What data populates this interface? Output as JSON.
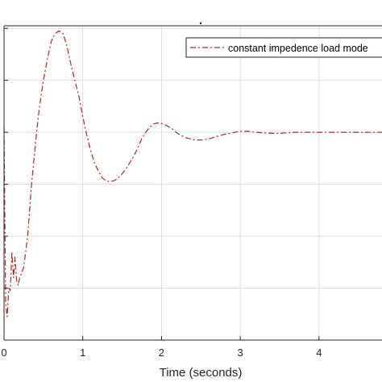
{
  "chart_data": {
    "type": "line",
    "title": ".",
    "xlabel": "Time (seconds)",
    "ylabel": "",
    "xlim": [
      0,
      4.8
    ],
    "ylim": [
      0,
      6.05
    ],
    "grid": true,
    "legend_position": "top-right",
    "x_ticks": [
      "0",
      "1",
      "2",
      "3",
      "4"
    ],
    "x_tick_values": [
      0,
      1,
      2,
      3,
      4
    ],
    "y_tick_values": [
      1,
      2,
      3,
      4,
      5,
      6
    ],
    "series": [
      {
        "name": "constant impedence load mode",
        "color": "#b52424",
        "style": "dash-dot",
        "x": [
          0,
          0.02,
          0.04,
          0.06,
          0.08,
          0.1,
          0.12,
          0.14,
          0.16,
          0.18,
          0.2,
          0.25,
          0.3,
          0.35,
          0.4,
          0.45,
          0.5,
          0.55,
          0.6,
          0.65,
          0.7,
          0.75,
          0.8,
          0.85,
          0.9,
          0.95,
          1.0,
          1.05,
          1.1,
          1.15,
          1.2,
          1.25,
          1.3,
          1.35,
          1.4,
          1.45,
          1.5,
          1.55,
          1.6,
          1.65,
          1.7,
          1.75,
          1.8,
          1.85,
          1.9,
          1.95,
          2.0,
          2.05,
          2.1,
          2.15,
          2.2,
          2.3,
          2.4,
          2.5,
          2.6,
          2.7,
          2.8,
          2.9,
          3.0,
          3.1,
          3.2,
          3.3,
          3.4,
          3.5,
          3.6,
          3.7,
          3.8,
          3.9,
          4.0,
          4.2,
          4.4,
          4.6,
          4.8
        ],
        "y": [
          4.1,
          0.7,
          0.45,
          1.0,
          0.95,
          1.7,
          1.2,
          1.6,
          1.15,
          1.05,
          1.2,
          1.4,
          2.0,
          3.0,
          3.8,
          4.5,
          5.0,
          5.4,
          5.75,
          5.9,
          5.95,
          5.9,
          5.65,
          5.3,
          5.0,
          4.7,
          4.3,
          3.95,
          3.65,
          3.4,
          3.25,
          3.12,
          3.06,
          3.05,
          3.07,
          3.12,
          3.2,
          3.3,
          3.42,
          3.55,
          3.7,
          3.88,
          4.0,
          4.1,
          4.16,
          4.18,
          4.17,
          4.14,
          4.1,
          4.05,
          3.98,
          3.9,
          3.86,
          3.85,
          3.87,
          3.92,
          3.96,
          3.99,
          4.02,
          4.02,
          4.0,
          3.99,
          3.98,
          3.98,
          3.99,
          4.0,
          4.0,
          4.0,
          4.0,
          4.0,
          4.0,
          4.0,
          4.0
        ]
      }
    ]
  }
}
